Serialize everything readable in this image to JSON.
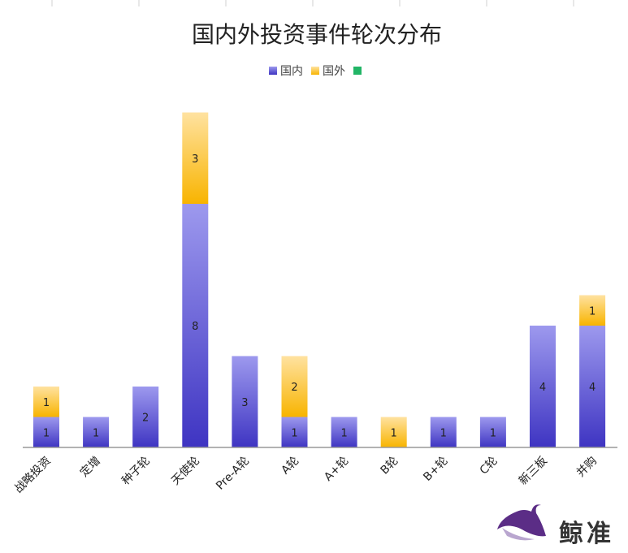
{
  "chart_data": {
    "type": "bar",
    "stacked": true,
    "title": "国内外投资事件轮次分布",
    "categories": [
      "战略投资",
      "定增",
      "种子轮",
      "天使轮",
      "Pre-A轮",
      "A轮",
      "A+轮",
      "B轮",
      "B+轮",
      "C轮",
      "新三板",
      "并购"
    ],
    "series": [
      {
        "name": "国内",
        "values": [
          1,
          1,
          2,
          8,
          3,
          1,
          1,
          0,
          1,
          1,
          4,
          4
        ]
      },
      {
        "name": "国外",
        "values": [
          1,
          0,
          0,
          3,
          0,
          2,
          0,
          1,
          0,
          0,
          0,
          1
        ]
      },
      {
        "name": "",
        "values": [
          0,
          0,
          0,
          0,
          0,
          0,
          0,
          0,
          0,
          0,
          0,
          0
        ]
      }
    ],
    "ylim": [
      0,
      11
    ],
    "grid": false,
    "legend_position": "top-center",
    "colors": {
      "domestic_top": "#9d99ee",
      "domestic_bottom": "#3e34c2",
      "foreign_top": "#ffe2a0",
      "foreign_bottom": "#f8b400",
      "third": "#22b566",
      "axis": "#999999"
    }
  },
  "brand": {
    "name": "鲸准",
    "icon": "whale-logo-icon"
  }
}
